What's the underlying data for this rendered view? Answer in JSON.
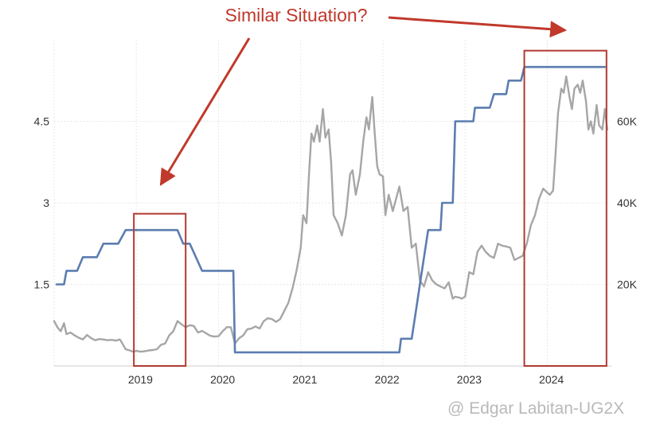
{
  "chart_data": {
    "type": "line",
    "title": "",
    "x_tick_labels": [
      "2019",
      "2020",
      "2021",
      "2022",
      "2023",
      "2024"
    ],
    "xlim": [
      2018.0,
      2024.78
    ],
    "y_left": {
      "ticks": [
        "1.5",
        "3",
        "4.5"
      ],
      "tick_values": [
        1.5,
        3,
        4.5
      ],
      "ylim": [
        0,
        6.0
      ]
    },
    "y_right": {
      "ticks": [
        "20K",
        "40K",
        "60K"
      ],
      "tick_values": [
        20000,
        40000,
        60000
      ],
      "ylim": [
        0,
        80000
      ]
    },
    "grid": true,
    "series": [
      {
        "axis": "left",
        "color": "#5b7db0",
        "points": [
          [
            2018.03,
            1.5
          ],
          [
            2018.12,
            1.5
          ],
          [
            2018.15,
            1.75
          ],
          [
            2018.28,
            1.75
          ],
          [
            2018.35,
            2.0
          ],
          [
            2018.52,
            2.0
          ],
          [
            2018.6,
            2.25
          ],
          [
            2018.78,
            2.25
          ],
          [
            2018.87,
            2.5
          ],
          [
            2019.5,
            2.5
          ],
          [
            2019.57,
            2.25
          ],
          [
            2019.65,
            2.25
          ],
          [
            2019.8,
            1.75
          ],
          [
            2020.18,
            1.75
          ],
          [
            2020.2,
            0.25
          ],
          [
            2022.2,
            0.25
          ],
          [
            2022.22,
            0.5
          ],
          [
            2022.35,
            0.5
          ],
          [
            2022.4,
            1.0
          ],
          [
            2022.45,
            1.5
          ],
          [
            2022.5,
            2.0
          ],
          [
            2022.55,
            2.5
          ],
          [
            2022.7,
            2.5
          ],
          [
            2022.72,
            3.0
          ],
          [
            2022.85,
            3.0
          ],
          [
            2022.88,
            4.5
          ],
          [
            2023.1,
            4.5
          ],
          [
            2023.12,
            4.75
          ],
          [
            2023.3,
            4.75
          ],
          [
            2023.35,
            5.0
          ],
          [
            2023.5,
            5.0
          ],
          [
            2023.53,
            5.25
          ],
          [
            2023.68,
            5.25
          ],
          [
            2023.72,
            5.5
          ],
          [
            2024.7,
            5.5
          ]
        ]
      },
      {
        "axis": "right",
        "color": "#a6a6a6",
        "points": [
          [
            2018.0,
            11000
          ],
          [
            2018.04,
            9500
          ],
          [
            2018.08,
            8500
          ],
          [
            2018.12,
            10500
          ],
          [
            2018.15,
            7800
          ],
          [
            2018.2,
            8200
          ],
          [
            2018.25,
            7500
          ],
          [
            2018.3,
            6900
          ],
          [
            2018.35,
            6500
          ],
          [
            2018.4,
            7600
          ],
          [
            2018.45,
            6800
          ],
          [
            2018.5,
            6300
          ],
          [
            2018.55,
            6600
          ],
          [
            2018.6,
            6500
          ],
          [
            2018.65,
            6300
          ],
          [
            2018.7,
            6400
          ],
          [
            2018.75,
            6200
          ],
          [
            2018.8,
            6500
          ],
          [
            2018.83,
            5500
          ],
          [
            2018.87,
            4100
          ],
          [
            2018.92,
            3800
          ],
          [
            2018.96,
            3500
          ],
          [
            2019.0,
            3700
          ],
          [
            2019.05,
            3500
          ],
          [
            2019.1,
            3600
          ],
          [
            2019.15,
            3800
          ],
          [
            2019.2,
            3900
          ],
          [
            2019.25,
            4100
          ],
          [
            2019.3,
            5200
          ],
          [
            2019.35,
            5500
          ],
          [
            2019.4,
            7500
          ],
          [
            2019.45,
            8500
          ],
          [
            2019.5,
            11000
          ],
          [
            2019.55,
            10200
          ],
          [
            2019.6,
            9500
          ],
          [
            2019.65,
            10000
          ],
          [
            2019.7,
            9800
          ],
          [
            2019.75,
            8200
          ],
          [
            2019.8,
            8600
          ],
          [
            2019.85,
            8000
          ],
          [
            2019.9,
            7400
          ],
          [
            2019.95,
            7200
          ],
          [
            2020.0,
            7300
          ],
          [
            2020.05,
            8500
          ],
          [
            2020.1,
            9500
          ],
          [
            2020.15,
            9500
          ],
          [
            2020.2,
            5500
          ],
          [
            2020.25,
            6800
          ],
          [
            2020.3,
            7500
          ],
          [
            2020.35,
            9000
          ],
          [
            2020.4,
            9200
          ],
          [
            2020.45,
            9700
          ],
          [
            2020.5,
            9200
          ],
          [
            2020.55,
            11000
          ],
          [
            2020.6,
            11700
          ],
          [
            2020.65,
            11500
          ],
          [
            2020.7,
            10800
          ],
          [
            2020.75,
            11500
          ],
          [
            2020.8,
            13500
          ],
          [
            2020.85,
            15500
          ],
          [
            2020.9,
            19000
          ],
          [
            2020.95,
            23500
          ],
          [
            2021.0,
            29000
          ],
          [
            2021.03,
            37000
          ],
          [
            2021.07,
            35000
          ],
          [
            2021.1,
            47000
          ],
          [
            2021.13,
            57000
          ],
          [
            2021.16,
            55000
          ],
          [
            2021.2,
            59000
          ],
          [
            2021.23,
            55000
          ],
          [
            2021.27,
            63000
          ],
          [
            2021.3,
            56000
          ],
          [
            2021.34,
            58000
          ],
          [
            2021.37,
            50000
          ],
          [
            2021.4,
            37000
          ],
          [
            2021.45,
            35000
          ],
          [
            2021.5,
            32000
          ],
          [
            2021.55,
            37000
          ],
          [
            2021.6,
            47000
          ],
          [
            2021.63,
            48000
          ],
          [
            2021.67,
            42000
          ],
          [
            2021.72,
            47000
          ],
          [
            2021.76,
            55000
          ],
          [
            2021.8,
            61000
          ],
          [
            2021.83,
            58000
          ],
          [
            2021.87,
            66000
          ],
          [
            2021.9,
            57000
          ],
          [
            2021.93,
            49000
          ],
          [
            2021.96,
            47000
          ],
          [
            2022.0,
            46500
          ],
          [
            2022.03,
            37000
          ],
          [
            2022.07,
            42000
          ],
          [
            2022.12,
            38000
          ],
          [
            2022.16,
            41000
          ],
          [
            2022.2,
            44000
          ],
          [
            2022.25,
            38000
          ],
          [
            2022.3,
            39000
          ],
          [
            2022.35,
            29000
          ],
          [
            2022.4,
            30000
          ],
          [
            2022.45,
            21000
          ],
          [
            2022.5,
            19500
          ],
          [
            2022.55,
            23000
          ],
          [
            2022.6,
            21000
          ],
          [
            2022.65,
            20000
          ],
          [
            2022.7,
            19500
          ],
          [
            2022.75,
            19000
          ],
          [
            2022.8,
            20500
          ],
          [
            2022.85,
            16500
          ],
          [
            2022.88,
            17000
          ],
          [
            2022.92,
            16800
          ],
          [
            2022.96,
            16500
          ],
          [
            2023.0,
            17000
          ],
          [
            2023.05,
            23000
          ],
          [
            2023.1,
            22500
          ],
          [
            2023.15,
            28000
          ],
          [
            2023.2,
            29500
          ],
          [
            2023.25,
            28000
          ],
          [
            2023.3,
            27000
          ],
          [
            2023.35,
            26500
          ],
          [
            2023.4,
            30000
          ],
          [
            2023.45,
            29500
          ],
          [
            2023.5,
            29300
          ],
          [
            2023.55,
            29000
          ],
          [
            2023.6,
            26000
          ],
          [
            2023.65,
            26500
          ],
          [
            2023.7,
            27000
          ],
          [
            2023.75,
            30000
          ],
          [
            2023.8,
            34500
          ],
          [
            2023.85,
            37000
          ],
          [
            2023.9,
            41000
          ],
          [
            2023.95,
            43500
          ],
          [
            2024.0,
            42500
          ],
          [
            2024.03,
            42000
          ],
          [
            2024.07,
            43000
          ],
          [
            2024.1,
            52000
          ],
          [
            2024.13,
            62000
          ],
          [
            2024.17,
            68000
          ],
          [
            2024.2,
            67000
          ],
          [
            2024.23,
            71000
          ],
          [
            2024.27,
            66000
          ],
          [
            2024.3,
            63000
          ],
          [
            2024.33,
            68000
          ],
          [
            2024.37,
            69000
          ],
          [
            2024.4,
            67000
          ],
          [
            2024.43,
            70000
          ],
          [
            2024.47,
            65000
          ],
          [
            2024.5,
            58000
          ],
          [
            2024.53,
            60000
          ],
          [
            2024.56,
            57000
          ],
          [
            2024.6,
            64000
          ],
          [
            2024.63,
            59000
          ],
          [
            2024.67,
            58000
          ],
          [
            2024.7,
            63000
          ],
          [
            2024.73,
            58000
          ]
        ]
      }
    ],
    "highlights": [
      {
        "x_range": [
          2018.97,
          2019.6
        ],
        "y_range": [
          0,
          2.8
        ],
        "color": "#b03a32"
      },
      {
        "x_range": [
          2023.72,
          2024.72
        ],
        "y_range": [
          0,
          5.8
        ],
        "color": "#b03a32"
      }
    ],
    "annotation": {
      "text": "Similar Situation?",
      "color": "#c0392b"
    }
  },
  "watermark": "@ Edgar Labitan-UG2X"
}
